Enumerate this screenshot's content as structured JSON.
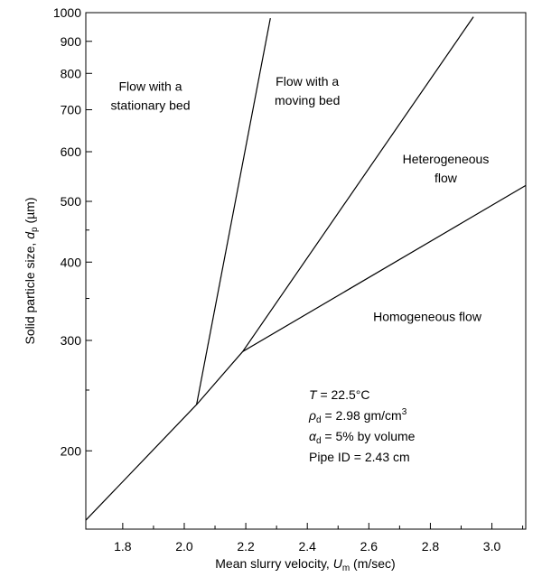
{
  "chart_data": {
    "type": "line",
    "title": "",
    "x_scale": "linear",
    "y_scale": "log",
    "xlim": [
      1.68,
      3.11
    ],
    "ylim": [
      150,
      1000
    ],
    "x_ticks": [
      1.8,
      2.0,
      2.2,
      2.4,
      2.6,
      2.8,
      3.0
    ],
    "x_tick_labels": [
      "1.8",
      "2.0",
      "2.2",
      "2.4",
      "2.6",
      "2.8",
      "3.0"
    ],
    "x_minor_ticks": [
      1.9,
      2.1,
      2.3,
      2.5,
      2.7,
      2.9,
      3.1
    ],
    "y_ticks": [
      200,
      300,
      400,
      500,
      600,
      700,
      800,
      900,
      1000
    ],
    "y_tick_labels": [
      "200",
      "300",
      "400",
      "500",
      "600",
      "700",
      "800",
      "900",
      "1000"
    ],
    "y_minor_ticks": [
      250,
      350,
      450
    ],
    "xlabel": {
      "prefix": "Mean slurry velocity, ",
      "var": "U",
      "sub": "m",
      "suffix": " (m/sec)"
    },
    "ylabel": {
      "prefix": "Solid particle size, ",
      "var": "d",
      "sub": "p",
      "suffix": " (µm)"
    },
    "grid": false,
    "series": [
      {
        "points": [
          [
            1.68,
            155
          ],
          [
            2.04,
            237
          ]
        ]
      },
      {
        "points": [
          [
            2.04,
            237
          ],
          [
            2.28,
            980
          ]
        ]
      },
      {
        "points": [
          [
            2.04,
            237
          ],
          [
            2.19,
            288
          ]
        ]
      },
      {
        "points": [
          [
            2.19,
            288
          ],
          [
            2.94,
            985
          ]
        ]
      },
      {
        "points": [
          [
            2.19,
            288
          ],
          [
            3.11,
            530
          ]
        ]
      }
    ],
    "region_labels": [
      {
        "lines": [
          "Flow with a",
          "stationary bed"
        ],
        "x": 1.89,
        "y": 750
      },
      {
        "lines": [
          "Flow with a",
          "moving bed"
        ],
        "x": 2.4,
        "y": 765
      },
      {
        "lines": [
          "Heterogeneous",
          "flow"
        ],
        "x": 2.85,
        "y": 575
      },
      {
        "lines": [
          "Homogeneous flow"
        ],
        "x": 2.79,
        "y": 322
      }
    ],
    "annotation": {
      "lines": [
        {
          "var": "T",
          "sub": "",
          "text": " = 22.5°C",
          "sup": ""
        },
        {
          "var": "ρ",
          "sub": "d",
          "text": " = 2.98 gm/cm",
          "sup": "3"
        },
        {
          "var": "α",
          "sub": "d",
          "text": " = 5% by volume",
          "sup": ""
        },
        {
          "var": "",
          "sub": "",
          "text": "Pipe ID = 2.43 cm",
          "sup": ""
        }
      ]
    }
  }
}
